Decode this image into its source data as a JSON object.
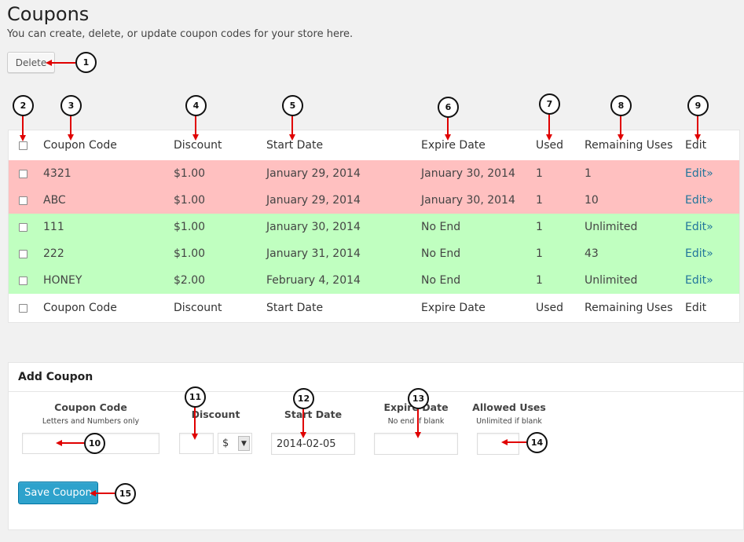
{
  "page": {
    "title": "Coupons",
    "subtitle": "You can create, delete, or update coupon codes for your store here.",
    "delete_button": "Delete"
  },
  "table": {
    "columns": [
      "Coupon Code",
      "Discount",
      "Start Date",
      "Expire Date",
      "Used",
      "Remaining Uses",
      "Edit"
    ],
    "rows": [
      {
        "code": "4321",
        "discount": "$1.00",
        "start": "January 29, 2014",
        "expire": "January 30, 2014",
        "used": "1",
        "remaining": "1",
        "edit": "Edit»",
        "status": "expired"
      },
      {
        "code": "ABC",
        "discount": "$1.00",
        "start": "January 29, 2014",
        "expire": "January 30, 2014",
        "used": "1",
        "remaining": "10",
        "edit": "Edit»",
        "status": "expired"
      },
      {
        "code": "111",
        "discount": "$1.00",
        "start": "January 30, 2014",
        "expire": "No End",
        "used": "1",
        "remaining": "Unlimited",
        "edit": "Edit»",
        "status": "active"
      },
      {
        "code": "222",
        "discount": "$1.00",
        "start": "January 31, 2014",
        "expire": "No End",
        "used": "1",
        "remaining": "43",
        "edit": "Edit»",
        "status": "active"
      },
      {
        "code": "HONEY",
        "discount": "$2.00",
        "start": "February 4, 2014",
        "expire": "No End",
        "used": "1",
        "remaining": "Unlimited",
        "edit": "Edit»",
        "status": "active"
      }
    ]
  },
  "add_coupon": {
    "title": "Add Coupon",
    "coupon_code_label": "Coupon Code",
    "coupon_code_hint": "Letters and Numbers only",
    "coupon_code_value": "",
    "discount_label": "Discount",
    "discount_value": "",
    "discount_type_selected": "$",
    "start_date_label": "Start Date",
    "start_date_value": "2014-02-05",
    "expire_date_label": "Expire Date",
    "expire_date_hint": "No end if blank",
    "expire_date_value": "",
    "allowed_uses_label": "Allowed Uses",
    "allowed_uses_hint": "Unlimited if blank",
    "allowed_uses_value": "",
    "save_button": "Save Coupon"
  },
  "callouts": [
    "1",
    "2",
    "3",
    "4",
    "5",
    "6",
    "7",
    "8",
    "9",
    "10",
    "11",
    "12",
    "13",
    "14",
    "15"
  ],
  "colors": {
    "expired_row": "#ffc0c0",
    "active_row": "#c0ffc0",
    "link": "#21759b",
    "primary_button": "#2ea2cc",
    "callout_arrow": "#e00000"
  }
}
